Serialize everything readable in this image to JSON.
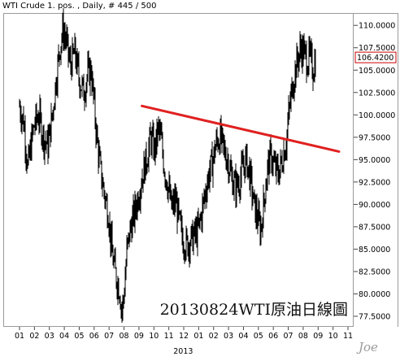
{
  "header": {
    "title_line": "WTI Crude 1. pos. , Daily, # 445 / 500"
  },
  "watermark_text": "20130824WTI原油日線圖",
  "signature": "Joe",
  "colors": {
    "price_bars": "#000000",
    "trendline": "#e02020",
    "last_price_box": "#cc0000",
    "axis": "#444444"
  },
  "chart_data": {
    "type": "ohlc-bar",
    "title": "",
    "xlabel": "",
    "ylabel": "",
    "ylim": [
      76.5,
      111.2
    ],
    "y_tick_labels": [
      "110.0000",
      "107.5000",
      "105.0000",
      "102.5000",
      "100.0000",
      "97.5000",
      "95.0000",
      "92.5000",
      "90.0000",
      "87.5000",
      "85.0000",
      "82.5000",
      "80.0000",
      "77.5000"
    ],
    "y_ticks": [
      110.0,
      107.5,
      105.0,
      102.5,
      100.0,
      97.5,
      95.0,
      92.5,
      90.0,
      87.5,
      85.0,
      82.5,
      80.0,
      77.5
    ],
    "x_tick_labels": [
      "01",
      "02",
      "03",
      "04",
      "05",
      "06",
      "07",
      "08",
      "09",
      "10",
      "11",
      "12",
      "01",
      "02",
      "03",
      "04",
      "05",
      "06",
      "07",
      "08",
      "09",
      "10",
      "11"
    ],
    "x_year_label": "2013",
    "last_price": 106.42,
    "last_price_label": "106.4200",
    "trendline": [
      {
        "x": 8.2,
        "y": 101.0
      },
      {
        "x": 21.4,
        "y": 95.9
      }
    ],
    "close_series": [
      {
        "x": 0.0,
        "y": 101.0
      },
      {
        "x": 0.3,
        "y": 99.0
      },
      {
        "x": 0.55,
        "y": 94.0
      },
      {
        "x": 0.8,
        "y": 97.0
      },
      {
        "x": 1.0,
        "y": 99.0
      },
      {
        "x": 1.3,
        "y": 100.0
      },
      {
        "x": 1.6,
        "y": 97.5
      },
      {
        "x": 1.9,
        "y": 96.5
      },
      {
        "x": 2.2,
        "y": 100.0
      },
      {
        "x": 2.45,
        "y": 104.0
      },
      {
        "x": 2.7,
        "y": 107.5
      },
      {
        "x": 2.9,
        "y": 109.5
      },
      {
        "x": 3.1,
        "y": 108.5
      },
      {
        "x": 3.4,
        "y": 105.5
      },
      {
        "x": 3.7,
        "y": 107.0
      },
      {
        "x": 4.0,
        "y": 104.0
      },
      {
        "x": 4.3,
        "y": 102.5
      },
      {
        "x": 4.55,
        "y": 104.5
      },
      {
        "x": 4.8,
        "y": 105.0
      },
      {
        "x": 5.0,
        "y": 101.0
      },
      {
        "x": 5.2,
        "y": 97.0
      },
      {
        "x": 5.45,
        "y": 93.5
      },
      {
        "x": 5.7,
        "y": 91.0
      },
      {
        "x": 5.95,
        "y": 89.0
      },
      {
        "x": 6.2,
        "y": 84.5
      },
      {
        "x": 6.45,
        "y": 82.0
      },
      {
        "x": 6.7,
        "y": 80.5
      },
      {
        "x": 6.85,
        "y": 78.0
      },
      {
        "x": 7.0,
        "y": 80.0
      },
      {
        "x": 7.2,
        "y": 85.0
      },
      {
        "x": 7.45,
        "y": 87.5
      },
      {
        "x": 7.7,
        "y": 89.0
      },
      {
        "x": 7.95,
        "y": 91.0
      },
      {
        "x": 8.2,
        "y": 93.0
      },
      {
        "x": 8.5,
        "y": 95.0
      },
      {
        "x": 8.8,
        "y": 97.5
      },
      {
        "x": 9.05,
        "y": 96.0
      },
      {
        "x": 9.3,
        "y": 98.5
      },
      {
        "x": 9.5,
        "y": 97.0
      },
      {
        "x": 9.7,
        "y": 94.0
      },
      {
        "x": 9.95,
        "y": 92.0
      },
      {
        "x": 10.2,
        "y": 89.5
      },
      {
        "x": 10.45,
        "y": 90.5
      },
      {
        "x": 10.7,
        "y": 88.0
      },
      {
        "x": 10.95,
        "y": 86.0
      },
      {
        "x": 11.2,
        "y": 85.5
      },
      {
        "x": 11.45,
        "y": 86.0
      },
      {
        "x": 11.7,
        "y": 86.5
      },
      {
        "x": 11.95,
        "y": 87.0
      },
      {
        "x": 12.2,
        "y": 89.0
      },
      {
        "x": 12.45,
        "y": 91.5
      },
      {
        "x": 12.7,
        "y": 93.5
      },
      {
        "x": 12.95,
        "y": 95.0
      },
      {
        "x": 13.2,
        "y": 97.0
      },
      {
        "x": 13.45,
        "y": 97.5
      },
      {
        "x": 13.7,
        "y": 96.0
      },
      {
        "x": 13.95,
        "y": 95.0
      },
      {
        "x": 14.2,
        "y": 93.0
      },
      {
        "x": 14.45,
        "y": 92.0
      },
      {
        "x": 14.7,
        "y": 92.5
      },
      {
        "x": 14.95,
        "y": 94.0
      },
      {
        "x": 15.2,
        "y": 95.0
      },
      {
        "x": 15.45,
        "y": 93.0
      },
      {
        "x": 15.7,
        "y": 90.0
      },
      {
        "x": 15.95,
        "y": 88.5
      },
      {
        "x": 16.15,
        "y": 87.0
      },
      {
        "x": 16.35,
        "y": 90.0
      },
      {
        "x": 16.6,
        "y": 94.0
      },
      {
        "x": 16.85,
        "y": 95.5
      },
      {
        "x": 17.1,
        "y": 94.0
      },
      {
        "x": 17.35,
        "y": 93.5
      },
      {
        "x": 17.6,
        "y": 95.0
      },
      {
        "x": 17.85,
        "y": 97.0
      },
      {
        "x": 18.1,
        "y": 101.0
      },
      {
        "x": 18.35,
        "y": 104.0
      },
      {
        "x": 18.6,
        "y": 106.0
      },
      {
        "x": 18.85,
        "y": 107.5
      },
      {
        "x": 19.05,
        "y": 107.0
      },
      {
        "x": 19.25,
        "y": 106.0
      },
      {
        "x": 19.45,
        "y": 106.5
      },
      {
        "x": 19.65,
        "y": 105.0
      },
      {
        "x": 19.85,
        "y": 106.4
      }
    ]
  }
}
